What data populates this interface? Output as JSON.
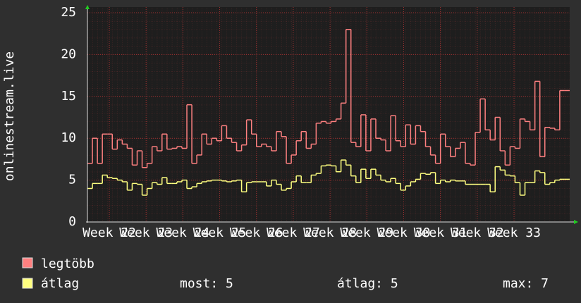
{
  "chart_data": {
    "type": "step",
    "y_label": "onlinestream.live",
    "x": [
      0,
      1,
      2,
      3,
      4,
      5,
      6,
      7,
      8,
      9,
      10,
      11,
      12,
      13,
      14,
      15,
      16,
      17,
      18,
      19,
      20,
      21,
      22,
      23,
      24,
      25,
      26,
      27,
      28,
      29,
      30,
      31,
      32,
      33,
      34,
      35,
      36,
      37,
      38,
      39,
      40,
      41,
      42,
      43,
      44,
      45,
      46,
      47,
      48,
      49,
      50,
      51,
      52,
      53,
      54,
      55,
      56,
      57,
      58,
      59,
      60,
      61,
      62,
      63,
      64,
      65,
      66,
      67,
      68,
      69,
      70,
      71,
      72,
      73,
      74,
      75,
      76,
      77,
      78,
      79,
      80,
      81,
      82,
      83,
      84,
      85,
      86,
      87,
      88,
      89,
      90,
      91,
      92,
      93,
      94,
      95,
      96
    ],
    "xlim": [
      0,
      97
    ],
    "xticks": [
      {
        "value": 4.4,
        "label": "Week 22"
      },
      {
        "value": 11.8,
        "label": "Week 23"
      },
      {
        "value": 19.2,
        "label": "Week 24"
      },
      {
        "value": 26.6,
        "label": "Week 25"
      },
      {
        "value": 34,
        "label": "Week 26"
      },
      {
        "value": 41.4,
        "label": "Week 27"
      },
      {
        "value": 48.8,
        "label": "Week 28"
      },
      {
        "value": 56.2,
        "label": "Week 29"
      },
      {
        "value": 63.6,
        "label": "Week 30"
      },
      {
        "value": 71,
        "label": "Week 31"
      },
      {
        "value": 78.4,
        "label": "Week 32"
      },
      {
        "value": 85.8,
        "label": "Week 33"
      }
    ],
    "ylim": [
      0,
      25
    ],
    "yticks": [
      0,
      5,
      10,
      15,
      20,
      25
    ],
    "grid": true,
    "series": [
      {
        "name": "legtöbb",
        "color": "#ff8080",
        "values": [
          7,
          10,
          7,
          10.5,
          10.5,
          8.7,
          9.8,
          9.3,
          8.8,
          6.8,
          8.5,
          6.5,
          7,
          9,
          8.5,
          10.5,
          8.7,
          8.8,
          9,
          8.8,
          14,
          7,
          8,
          10.5,
          9.3,
          10,
          9.7,
          11.5,
          10,
          9.5,
          8.5,
          9.2,
          12.2,
          10.5,
          9,
          9.3,
          9,
          8.5,
          10.8,
          10.2,
          7,
          8,
          9.7,
          10.8,
          8.8,
          9.3,
          11.8,
          12,
          11.8,
          12,
          12.3,
          14.2,
          23,
          9.5,
          9,
          12.8,
          8.5,
          12.3,
          10,
          9.8,
          8.5,
          12.7,
          9.7,
          9,
          11.6,
          9.3,
          11.5,
          10.8,
          9,
          8,
          7,
          10.5,
          9,
          7.8,
          8.8,
          9.5,
          7,
          6.8,
          10.7,
          14.7,
          11,
          9.8,
          12.5,
          8.5,
          6.8,
          9,
          8.8,
          12.3,
          12,
          11,
          16.8,
          7.8,
          11.3,
          11.2,
          11,
          15.7,
          15.7
        ]
      },
      {
        "name": "átlag",
        "color": "#ffff80",
        "values": [
          4,
          4.6,
          4.6,
          5.6,
          5.3,
          5.2,
          5.0,
          4.8,
          3.8,
          4.6,
          4.5,
          3.2,
          4.0,
          4.7,
          4.5,
          5.3,
          4.6,
          4.6,
          4.8,
          5.0,
          4.0,
          4.2,
          4.6,
          4.8,
          4.9,
          5.0,
          5.0,
          4.9,
          4.8,
          4.9,
          5.0,
          3.6,
          4.7,
          4.8,
          4.8,
          4.8,
          4.3,
          5.0,
          4.5,
          3.8,
          4.0,
          4.8,
          5.5,
          4.7,
          4.7,
          5.6,
          5.8,
          6.7,
          6.8,
          6.7,
          6.0,
          7.4,
          6.8,
          5.5,
          4.7,
          6.3,
          5.2,
          6.3,
          5.6,
          5.0,
          4.8,
          5.2,
          4.6,
          3.8,
          4.3,
          4.8,
          5.1,
          5.8,
          5.7,
          5.9,
          4.6,
          5.0,
          4.8,
          5.0,
          4.9,
          4.9,
          4.5,
          4.5,
          4.5,
          4.5,
          4.5,
          3.6,
          6.6,
          6.2,
          5.6,
          5.5,
          4.7,
          3.2,
          4.7,
          4.7,
          6.1,
          5.9,
          4.5,
          4.7,
          5.0,
          5.1,
          5.1
        ]
      }
    ],
    "stats": [
      "most: 5",
      "átlag: 5",
      "max: 7"
    ]
  }
}
